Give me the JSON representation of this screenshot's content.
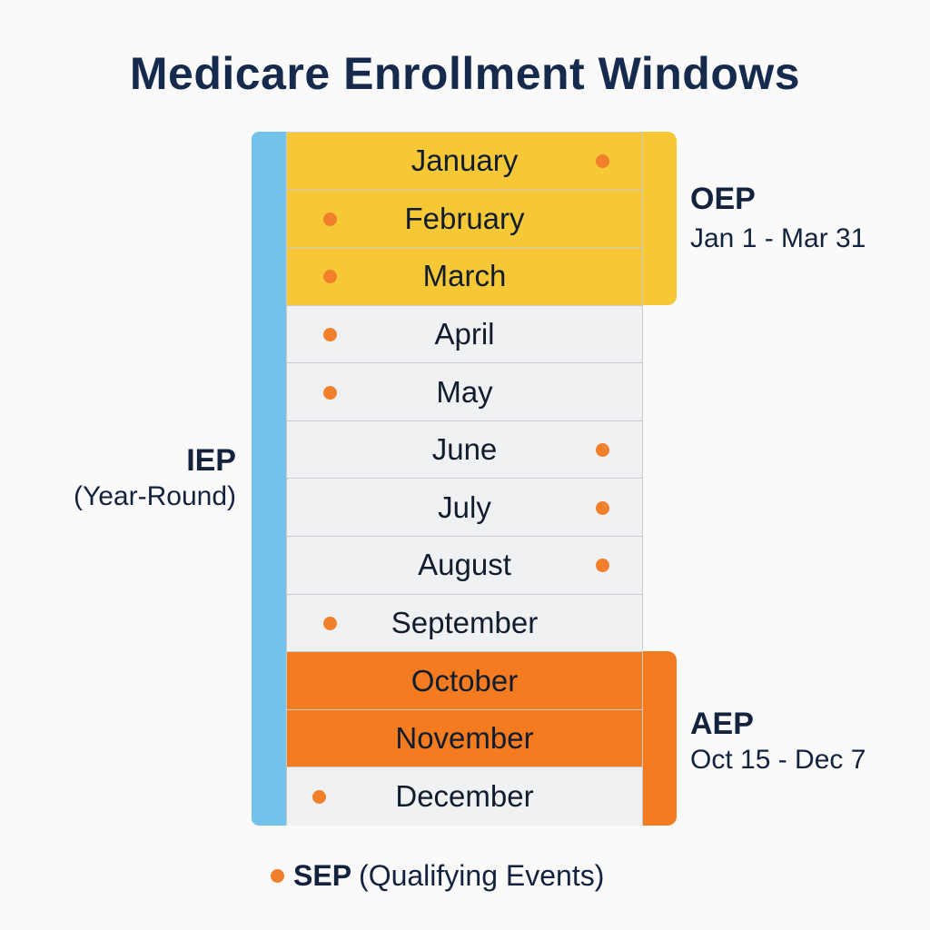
{
  "title": "Medicare Enrollment Windows",
  "colors": {
    "iep": "#73c2e9",
    "oep": "#f7c836",
    "aep": "#f57b20",
    "sep_dot": "#f17f2c",
    "default_month": "#f0f1f3",
    "title": "#152a4c"
  },
  "months": [
    {
      "label": "January",
      "period": "oep",
      "sep_dot": "right"
    },
    {
      "label": "February",
      "period": "oep",
      "sep_dot": "left"
    },
    {
      "label": "March",
      "period": "oep",
      "sep_dot": "left"
    },
    {
      "label": "April",
      "period": "none",
      "sep_dot": "left"
    },
    {
      "label": "May",
      "period": "none",
      "sep_dot": "left"
    },
    {
      "label": "June",
      "period": "none",
      "sep_dot": "right"
    },
    {
      "label": "July",
      "period": "none",
      "sep_dot": "right"
    },
    {
      "label": "August",
      "period": "none",
      "sep_dot": "right"
    },
    {
      "label": "September",
      "period": "none",
      "sep_dot": "left"
    },
    {
      "label": "October",
      "period": "aep",
      "sep_dot": "none"
    },
    {
      "label": "November",
      "period": "aep",
      "sep_dot": "none"
    },
    {
      "label": "December",
      "period": "none",
      "sep_dot": "left-far"
    }
  ],
  "iep": {
    "title": "IEP",
    "subtitle": "(Year-Round)"
  },
  "oep": {
    "title": "OEP",
    "subtitle": "Jan 1 - Mar 31"
  },
  "aep": {
    "title": "AEP",
    "subtitle": "Oct 15 - Dec 7"
  },
  "legend": {
    "key": "SEP",
    "text": "(Qualifying Events)"
  }
}
